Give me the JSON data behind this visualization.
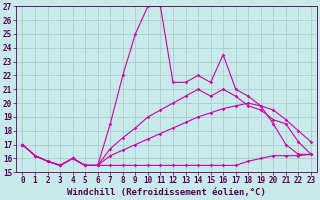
{
  "xlabel": "Windchill (Refroidissement éolien,°C)",
  "xlim": [
    -0.5,
    23.5
  ],
  "ylim": [
    15,
    27
  ],
  "xticks": [
    0,
    1,
    2,
    3,
    4,
    5,
    6,
    7,
    8,
    9,
    10,
    11,
    12,
    13,
    14,
    15,
    16,
    17,
    18,
    19,
    20,
    21,
    22,
    23
  ],
  "yticks": [
    15,
    16,
    17,
    18,
    19,
    20,
    21,
    22,
    23,
    24,
    25,
    26,
    27
  ],
  "bg_color": "#c8eaea",
  "grid_color": "#a0c8c8",
  "line_color": "#cc00aa",
  "line1_x": [
    0,
    1,
    2,
    3,
    4,
    5,
    6,
    7,
    8,
    9,
    10,
    11,
    12,
    13,
    14,
    15,
    16,
    17,
    18,
    19,
    20,
    21,
    22,
    23
  ],
  "line1_y": [
    17.0,
    16.2,
    15.8,
    15.5,
    16.0,
    15.5,
    15.5,
    18.5,
    22.0,
    25.0,
    27.0,
    27.0,
    21.5,
    21.5,
    22.0,
    21.5,
    23.5,
    21.0,
    20.5,
    19.8,
    18.5,
    17.0,
    16.3,
    16.3
  ],
  "line2_x": [
    0,
    1,
    2,
    3,
    4,
    5,
    6,
    7,
    8,
    9,
    10,
    11,
    12,
    13,
    14,
    15,
    16,
    17,
    18,
    19,
    20,
    21,
    22,
    23
  ],
  "line2_y": [
    17.0,
    16.2,
    15.8,
    15.5,
    16.0,
    15.5,
    15.5,
    16.7,
    17.5,
    18.2,
    19.0,
    19.5,
    20.0,
    20.5,
    21.0,
    20.5,
    21.0,
    20.5,
    19.8,
    19.5,
    18.8,
    18.5,
    17.2,
    16.3
  ],
  "line3_x": [
    0,
    1,
    2,
    3,
    4,
    5,
    6,
    7,
    8,
    9,
    10,
    11,
    12,
    13,
    14,
    15,
    16,
    17,
    18,
    19,
    20,
    21,
    22,
    23
  ],
  "line3_y": [
    17.0,
    16.2,
    15.8,
    15.5,
    16.0,
    15.5,
    15.5,
    16.2,
    16.6,
    17.0,
    17.4,
    17.8,
    18.2,
    18.6,
    19.0,
    19.3,
    19.6,
    19.8,
    20.0,
    19.8,
    19.5,
    18.8,
    18.0,
    17.2
  ],
  "line4_x": [
    0,
    1,
    2,
    3,
    4,
    5,
    6,
    7,
    8,
    9,
    10,
    11,
    12,
    13,
    14,
    15,
    16,
    17,
    18,
    19,
    20,
    21,
    22,
    23
  ],
  "line4_y": [
    17.0,
    16.2,
    15.8,
    15.5,
    16.0,
    15.5,
    15.5,
    15.5,
    15.5,
    15.5,
    15.5,
    15.5,
    15.5,
    15.5,
    15.5,
    15.5,
    15.5,
    15.5,
    15.8,
    16.0,
    16.2,
    16.2,
    16.2,
    16.3
  ],
  "tick_fontsize": 5.5,
  "label_fontsize": 6.5,
  "markersize": 1.8,
  "linewidth": 0.8
}
